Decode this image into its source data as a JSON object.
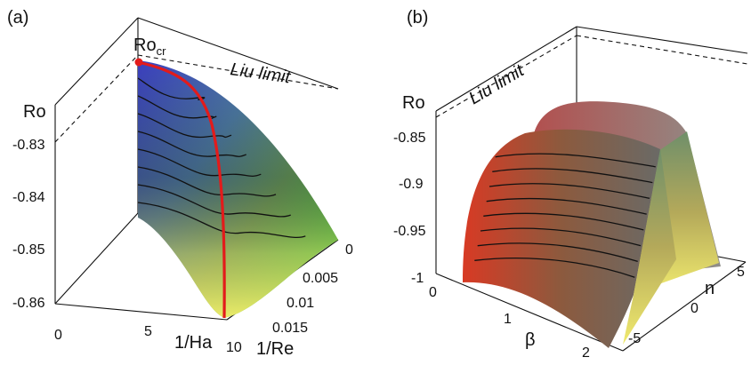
{
  "chart_data": [
    {
      "panel": "(a)",
      "type": "surface3d",
      "x_axis": {
        "label": "1/Ha",
        "ticks": [
          "0",
          "5",
          "10"
        ],
        "range": [
          0,
          10
        ]
      },
      "y_axis": {
        "label": "1/Re",
        "ticks": [
          "0",
          "0.005",
          "0.01",
          "0.015"
        ],
        "range": [
          0,
          0.015
        ]
      },
      "z_axis": {
        "label": "Ro",
        "ticks": [
          "-0.83",
          "-0.84",
          "-0.85",
          "-0.86"
        ],
        "range": [
          -0.86,
          -0.828
        ]
      },
      "annotations": {
        "limit": "Liu limit",
        "critical": "Ro",
        "critical_sub": "cr"
      },
      "liu_limit": -0.8284,
      "critical_point": {
        "inv_Ha": 0,
        "inv_Re": 0,
        "Ro": -0.8284
      },
      "ridge_curve": [
        [
          0,
          -0.8284
        ],
        [
          2,
          -0.833
        ],
        [
          4,
          -0.842
        ],
        [
          6,
          -0.851
        ],
        [
          8,
          -0.857
        ],
        [
          9,
          -0.86
        ]
      ],
      "colors": {
        "high": "#4a55c8",
        "mid": "#3aa37a",
        "edge": "#33e05a",
        "low": "#e9e35a",
        "ridge": "#e31b1b"
      }
    },
    {
      "panel": "(b)",
      "type": "surface3d",
      "x_axis": {
        "label": "β",
        "ticks": [
          "0",
          "1",
          "2"
        ],
        "range": [
          0,
          2
        ]
      },
      "y_axis": {
        "label": "n",
        "ticks": [
          "-5",
          "0",
          "5"
        ],
        "range": [
          -5,
          5
        ]
      },
      "z_axis": {
        "label": "Ro",
        "ticks": [
          "-0.85",
          "-0.9",
          "-0.95",
          "-1"
        ],
        "range": [
          -1,
          -0.82
        ]
      },
      "annotations": {
        "limit": "Liu limit"
      },
      "liu_limit": -0.8284,
      "max_Ro": -0.85,
      "min_Ro": -1,
      "colors": {
        "face": "#c93a2a",
        "mid": "#7c6a4a",
        "peak": "#f0ea7a",
        "back": "#b06f7c"
      }
    }
  ]
}
